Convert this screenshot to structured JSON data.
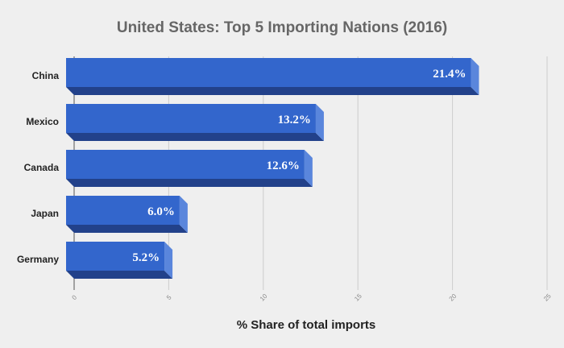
{
  "chart_data": {
    "type": "bar",
    "orientation": "horizontal",
    "title": "United States: Top 5 Importing Nations (2016)",
    "xlabel": "% Share of total imports",
    "ylabel": "",
    "categories": [
      "China",
      "Mexico",
      "Canada",
      "Japan",
      "Germany"
    ],
    "values": [
      21.4,
      13.2,
      12.6,
      6.0,
      5.2
    ],
    "data_labels": [
      "21.4%",
      "13.2%",
      "12.6%",
      "6.0%",
      "5.2%"
    ],
    "xlim": [
      0,
      25
    ],
    "xticks": [
      "0",
      "5",
      "10",
      "15",
      "20",
      "25"
    ],
    "grid": true,
    "colors": {
      "front": "#3366cc",
      "side": "#5a86dc",
      "bottom": "#22418a",
      "title": "#666666"
    }
  }
}
